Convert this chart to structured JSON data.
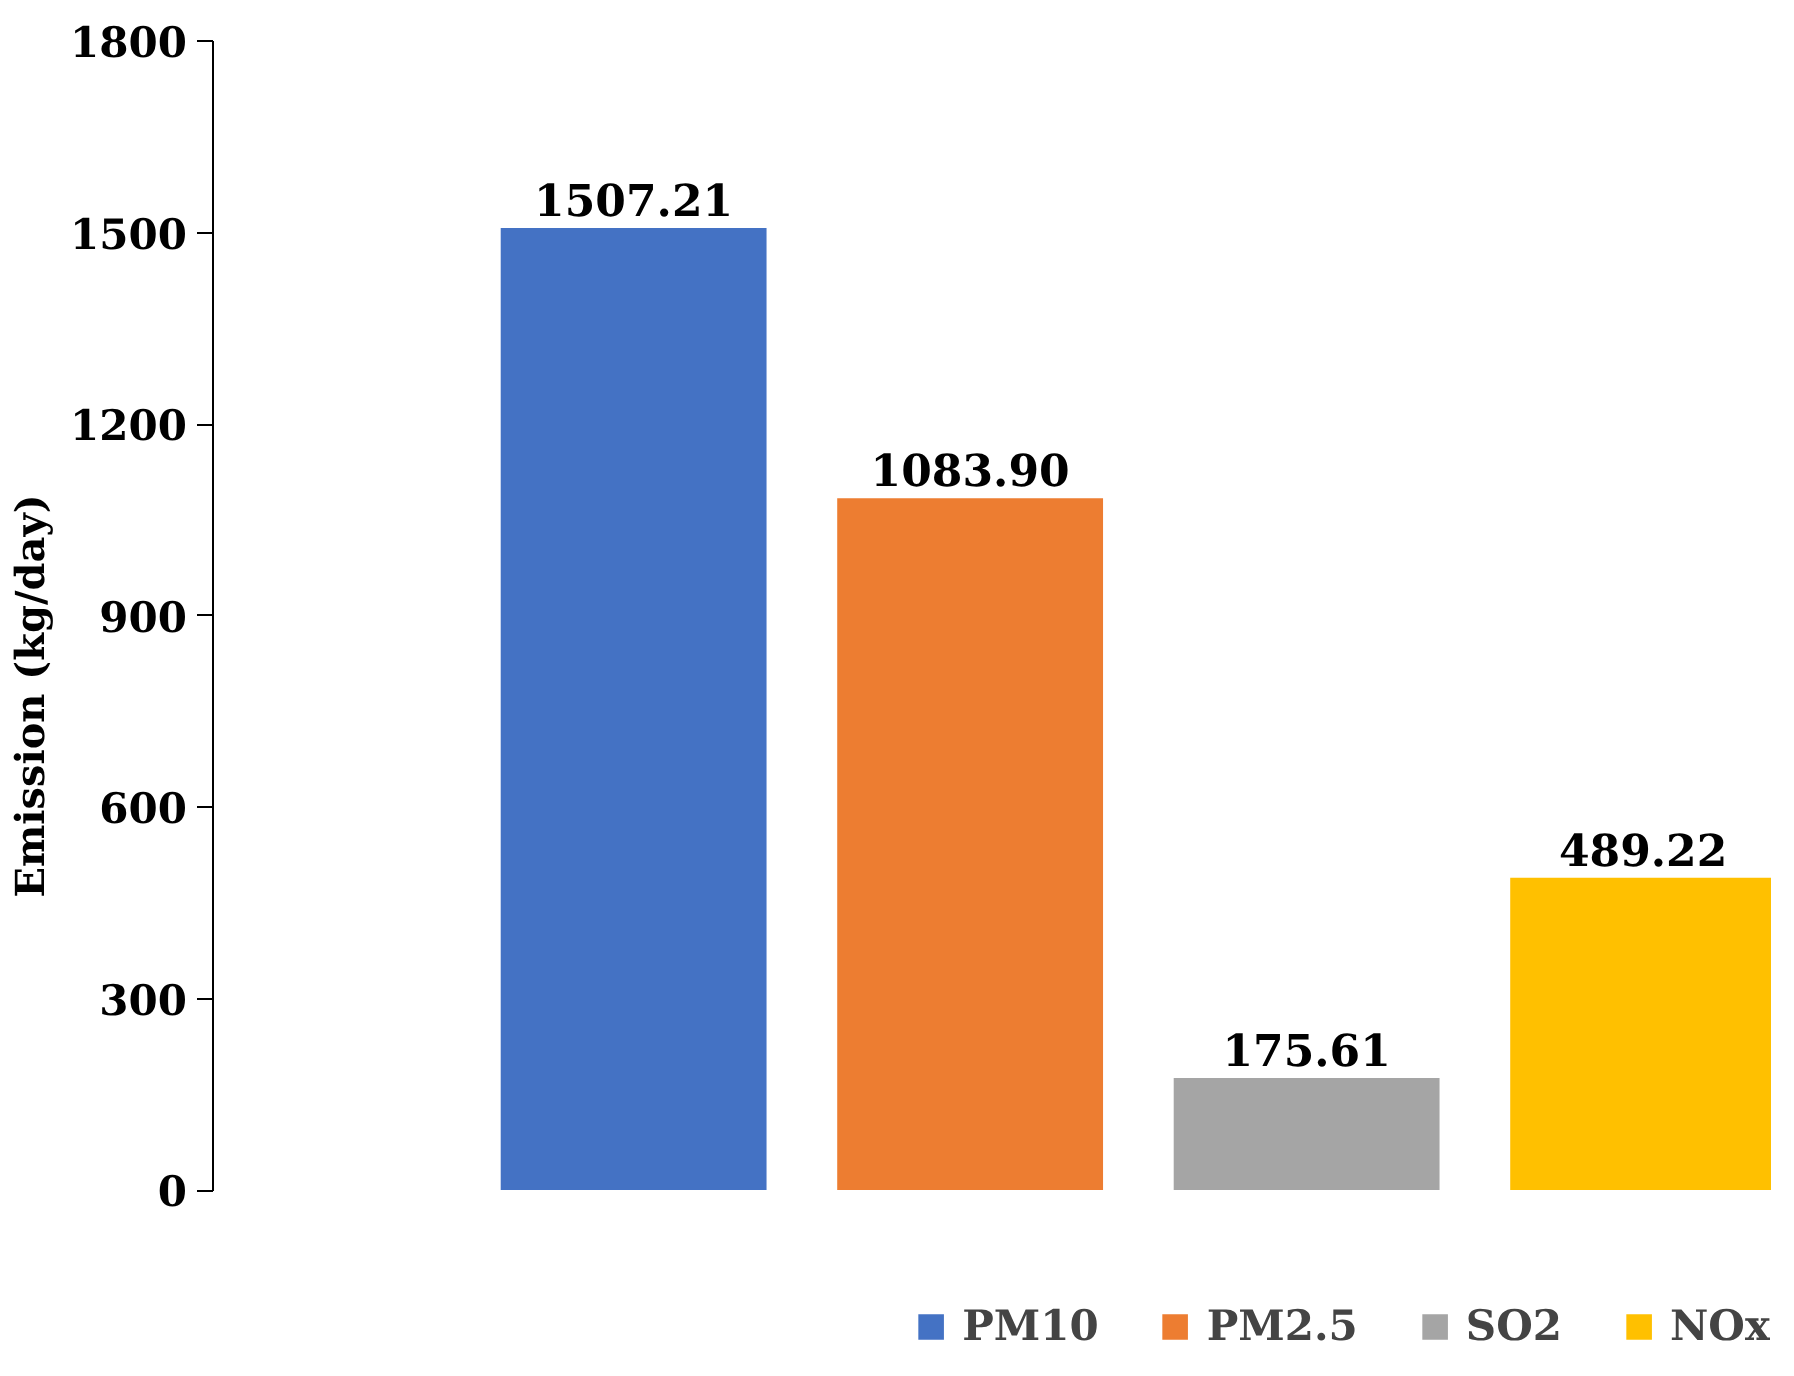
{
  "chart_data": {
    "type": "bar",
    "ylabel": "Emission (kg/day)",
    "categories": [
      null
    ],
    "series": [
      {
        "name": "PM10",
        "color": "#4472c4",
        "values": [
          1507.21
        ]
      },
      {
        "name": "PM2.5",
        "color": "#ed7d31",
        "values": [
          1083.9
        ]
      },
      {
        "name": "SO2",
        "color": "#a5a5a5",
        "values": [
          175.61
        ]
      },
      {
        "name": "NOx",
        "color": "#ffc000",
        "values": [
          489.22
        ]
      }
    ],
    "value_labels": [
      "1507.21",
      "1083.90",
      "175.61",
      "489.22"
    ],
    "ylim": [
      0,
      1800
    ],
    "yticks": [
      0,
      300,
      600,
      900,
      1200,
      1500,
      1800
    ],
    "grid": false,
    "legend": "bottom",
    "tick_labels": "y"
  }
}
